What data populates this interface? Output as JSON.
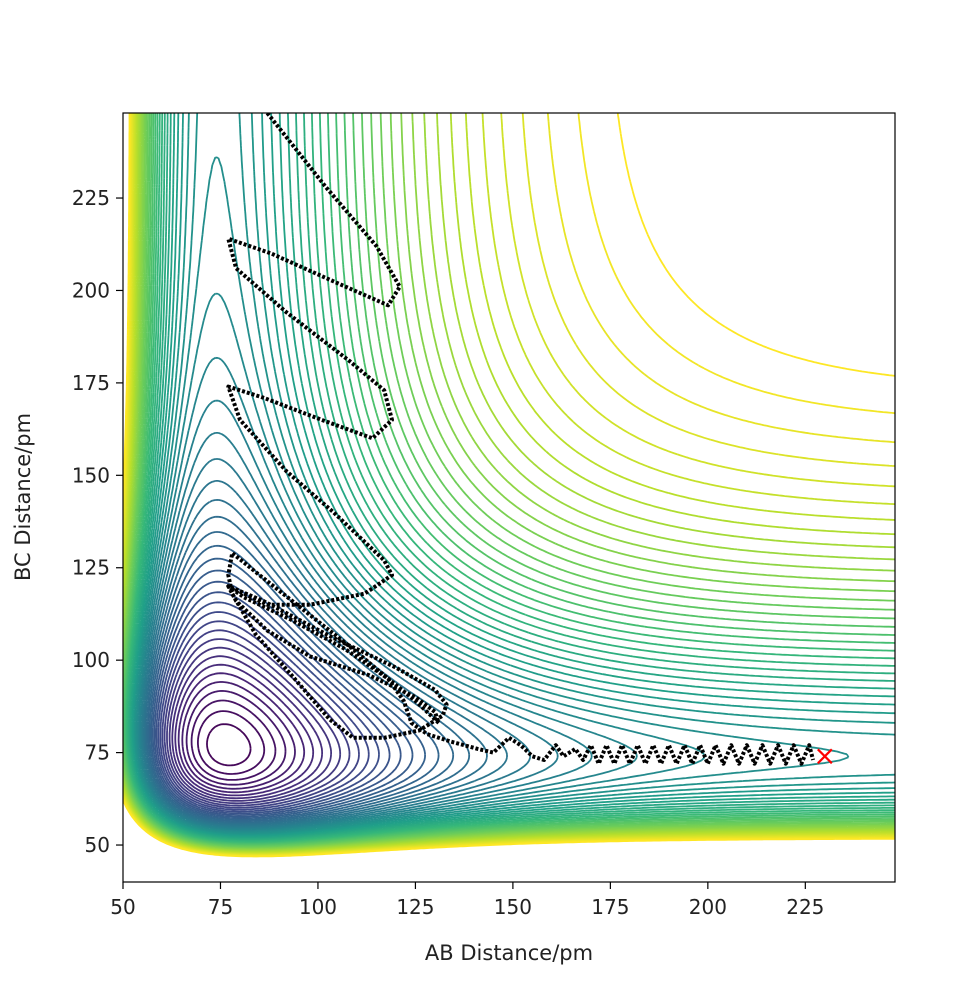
{
  "chart_data": {
    "type": "contour",
    "xlabel": "AB Distance/pm",
    "ylabel": "BC Distance/pm",
    "xlim": [
      50,
      248
    ],
    "ylim": [
      40,
      248
    ],
    "x_ticks": [
      50,
      75,
      100,
      125,
      150,
      175,
      200,
      225
    ],
    "y_ticks": [
      50,
      75,
      100,
      125,
      150,
      175,
      200,
      225
    ],
    "colormap": "viridis",
    "grid": false,
    "end_marker": {
      "label": "x",
      "x": 230,
      "y": 74,
      "color": "#ff0000"
    },
    "trajectory": {
      "color": "#000000",
      "points": [
        [
          87,
          248
        ],
        [
          102,
          228
        ],
        [
          115,
          212
        ],
        [
          121,
          201
        ],
        [
          118,
          196
        ],
        [
          105,
          202
        ],
        [
          88,
          210
        ],
        [
          77,
          214
        ],
        [
          79,
          206
        ],
        [
          92,
          194
        ],
        [
          108,
          181
        ],
        [
          117,
          173
        ],
        [
          119,
          165
        ],
        [
          114,
          160
        ],
        [
          101,
          165
        ],
        [
          86,
          171
        ],
        [
          77,
          174
        ],
        [
          80,
          165
        ],
        [
          92,
          151
        ],
        [
          104,
          140
        ],
        [
          112,
          132
        ],
        [
          117,
          127
        ],
        [
          119,
          123
        ],
        [
          112,
          118
        ],
        [
          98,
          115
        ],
        [
          87,
          115
        ],
        [
          77,
          120
        ],
        [
          81,
          117
        ],
        [
          93,
          111
        ],
        [
          107,
          103
        ],
        [
          118,
          95
        ],
        [
          125,
          89
        ],
        [
          129,
          85
        ],
        [
          131,
          83
        ],
        [
          130,
          86
        ],
        [
          125,
          90
        ],
        [
          113,
          96
        ],
        [
          98,
          101
        ],
        [
          87,
          108
        ],
        [
          79,
          116
        ],
        [
          77,
          120
        ],
        [
          86,
          116
        ],
        [
          104,
          106
        ],
        [
          120,
          98
        ],
        [
          130,
          92
        ],
        [
          133,
          88
        ],
        [
          132,
          85
        ],
        [
          126,
          81
        ],
        [
          117,
          79
        ],
        [
          109,
          79
        ],
        [
          103,
          84
        ],
        [
          94,
          95
        ],
        [
          84,
          107
        ],
        [
          78,
          118
        ],
        [
          77,
          123
        ],
        [
          78,
          129
        ],
        [
          85,
          123
        ],
        [
          97,
          113
        ],
        [
          109,
          103
        ],
        [
          118,
          95
        ],
        [
          122,
          89
        ],
        [
          124,
          83
        ],
        [
          128,
          80
        ],
        [
          134,
          78
        ],
        [
          141,
          76
        ],
        [
          145,
          75
        ],
        [
          149,
          79
        ],
        [
          152,
          77
        ],
        [
          155,
          74
        ],
        [
          158,
          73
        ],
        [
          161,
          77
        ],
        [
          163,
          74
        ],
        [
          166,
          76
        ],
        [
          168,
          73
        ],
        [
          170,
          77
        ],
        [
          172,
          72
        ],
        [
          174,
          77
        ],
        [
          176,
          72
        ],
        [
          178,
          77
        ],
        [
          180,
          72
        ],
        [
          182,
          77
        ],
        [
          184,
          72
        ],
        [
          186,
          77
        ],
        [
          188,
          72
        ],
        [
          190,
          77
        ],
        [
          192,
          72
        ],
        [
          194,
          77
        ],
        [
          196,
          72
        ],
        [
          198,
          77
        ],
        [
          200,
          72
        ],
        [
          202,
          77
        ],
        [
          204,
          72
        ],
        [
          206,
          77
        ],
        [
          208,
          72
        ],
        [
          210,
          77
        ],
        [
          212,
          72
        ],
        [
          214,
          77
        ],
        [
          216,
          72
        ],
        [
          218,
          77
        ],
        [
          220,
          72
        ],
        [
          222,
          77
        ],
        [
          224,
          72
        ],
        [
          226,
          77
        ],
        [
          227,
          73
        ]
      ]
    }
  }
}
